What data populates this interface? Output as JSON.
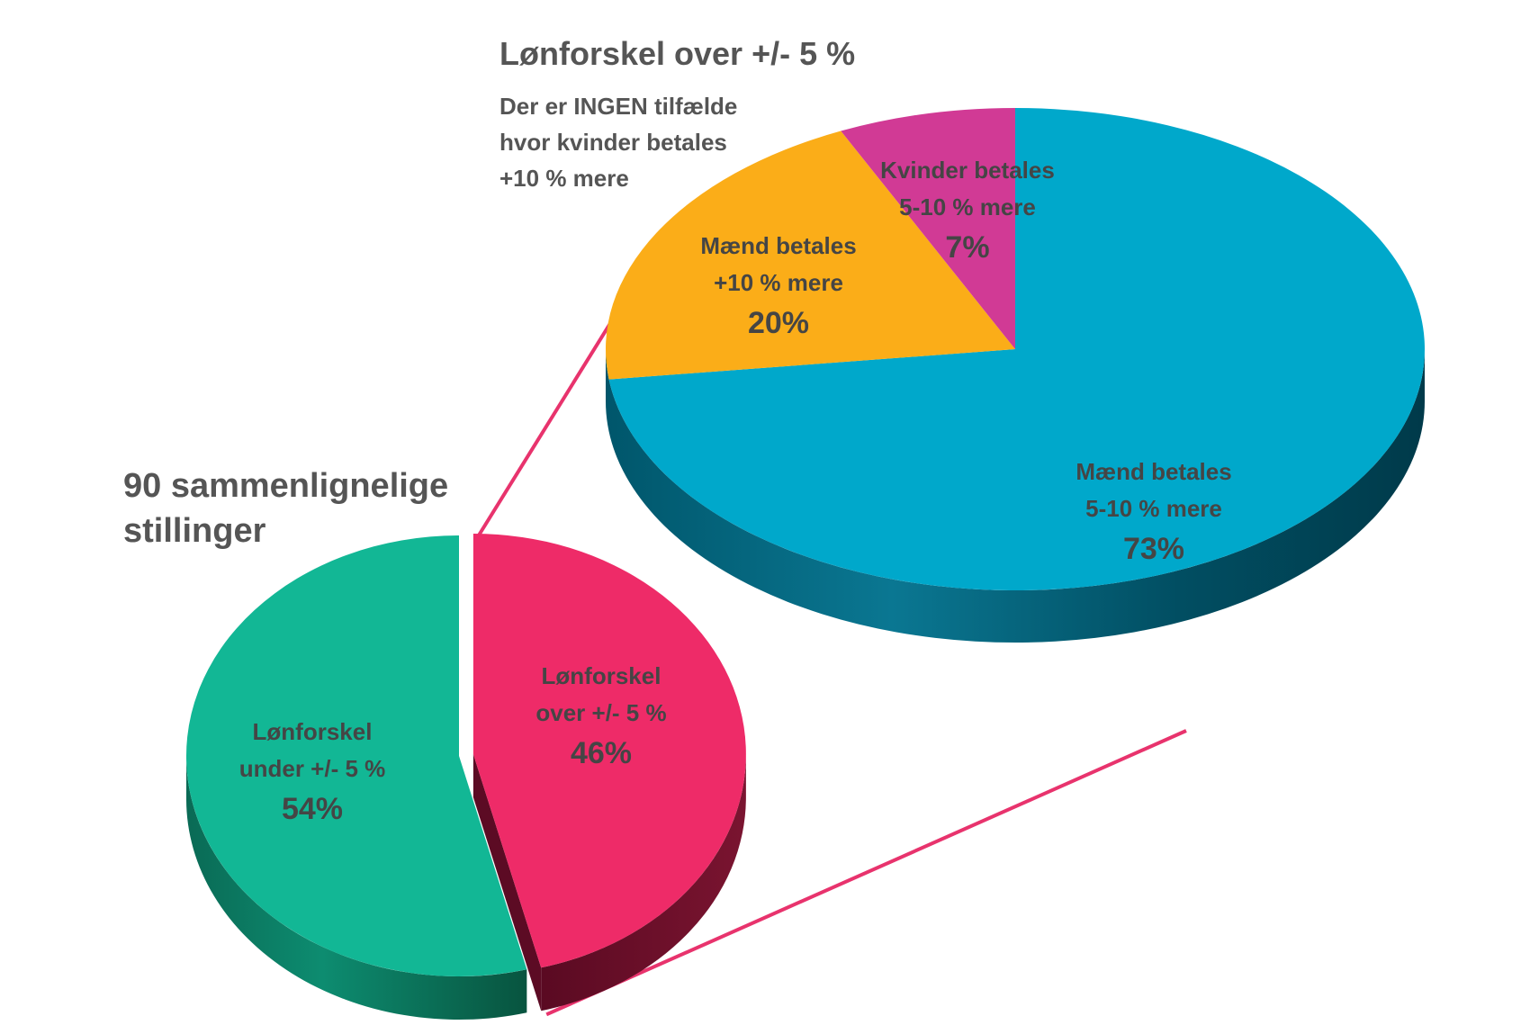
{
  "colors": {
    "under": "#12B795",
    "over": "#EE2B68",
    "maend_5_10": "#00A8CB",
    "maend_10": "#FBAD18",
    "kvinder_5_10": "#D13A95",
    "connector": "#E8336D",
    "label_text": "#454545"
  },
  "chart_data": [
    {
      "type": "pie",
      "title": "90 sammenlignelige stillinger",
      "title_lines": [
        "90 sammenlignelige",
        "stillinger"
      ],
      "slices": [
        {
          "key": "under",
          "label_lines": [
            "Lønforskel",
            "under +/- 5 %"
          ],
          "value": 54,
          "value_label": "54%"
        },
        {
          "key": "over",
          "label_lines": [
            "Lønforskel",
            "over +/- 5 %"
          ],
          "value": 46,
          "value_label": "46%"
        }
      ]
    },
    {
      "type": "pie",
      "title": "Lønforskel over +/- 5 %",
      "subtitle_lines": [
        "Der er INGEN tilfælde",
        "hvor kvinder betales",
        "+10 % mere"
      ],
      "slices": [
        {
          "key": "maend_5_10",
          "label_lines": [
            "Mænd betales",
            "5-10 % mere"
          ],
          "value": 73,
          "value_label": "73%"
        },
        {
          "key": "maend_10",
          "label_lines": [
            "Mænd betales",
            "+10 % mere"
          ],
          "value": 20,
          "value_label": "20%"
        },
        {
          "key": "kvinder_5_10",
          "label_lines": [
            "Kvinder betales",
            "5-10 % mere"
          ],
          "value": 7,
          "value_label": "7%"
        }
      ]
    }
  ]
}
